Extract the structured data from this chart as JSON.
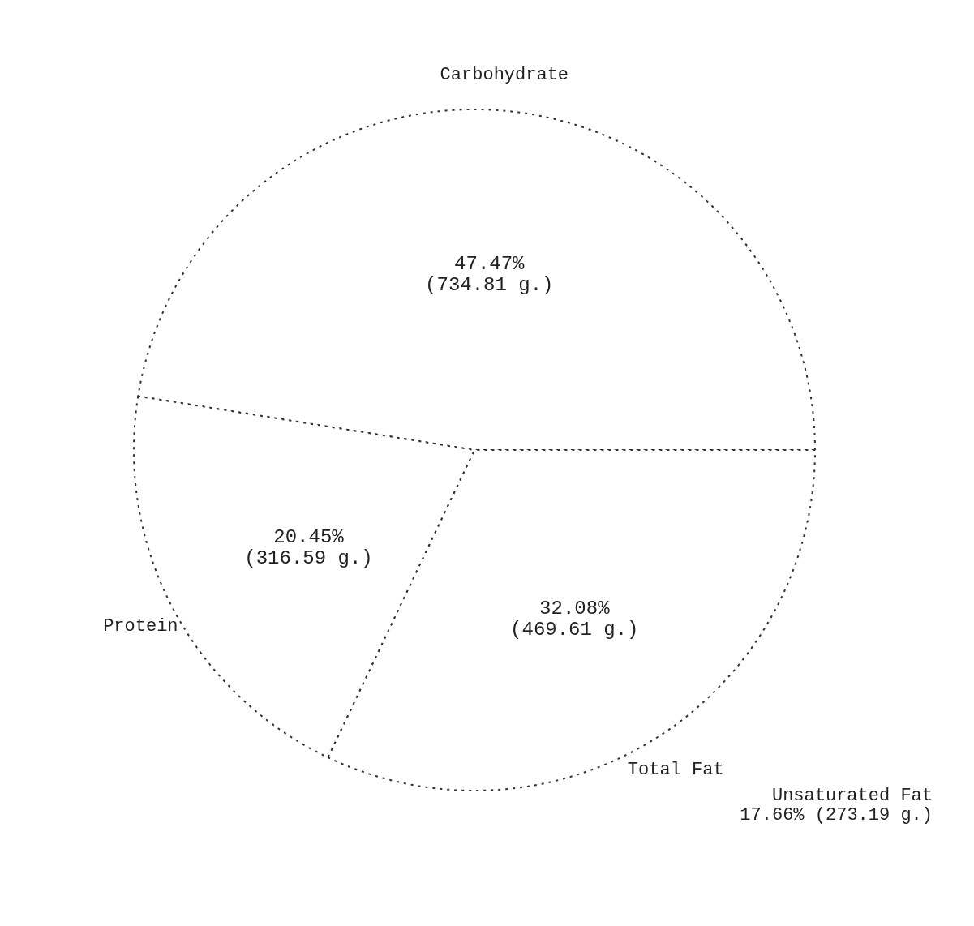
{
  "chart_data": {
    "type": "pie",
    "categories": [
      "Carbohydrate",
      "Total Fat",
      "Protein"
    ],
    "values": [
      47.47,
      32.08,
      20.45
    ],
    "value_labels": [
      "47.47%\n(734.81 g.)",
      "32.08%\n(469.61 g.)",
      "20.45%\n(316.59 g.)"
    ],
    "colors": [
      "#ffffff",
      "#ffffff",
      "#ffffff"
    ],
    "annotations": [
      "Unsaturated Fat\n17.66% (273.19 g.)"
    ],
    "legend": false
  }
}
